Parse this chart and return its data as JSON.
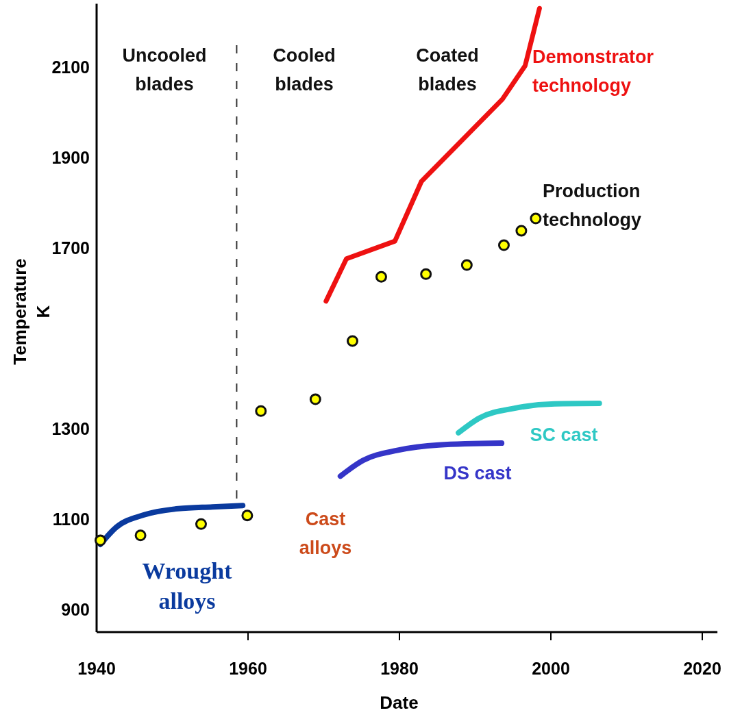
{
  "chart_data": {
    "type": "line",
    "xlabel": "Date",
    "ylabel": "Temperature K",
    "xlim": [
      1940,
      2022
    ],
    "xticks": [
      1940,
      1960,
      1980,
      2000,
      2020
    ],
    "ylim": [
      850,
      2240
    ],
    "yticks": [
      900,
      1100,
      1300,
      1700,
      1900,
      2100
    ],
    "grid": false,
    "series": [
      {
        "name": "Wrought alloys",
        "color": "#0a3a9e",
        "x": [
          1940.5,
          1942.6,
          1946.2,
          1950.8,
          1955.3,
          1959.3
        ],
        "values": [
          1044,
          1082,
          1109,
          1123,
          1127,
          1130
        ]
      },
      {
        "name": "DS cast",
        "color": "#3535c8",
        "x": [
          1972.2,
          1975.2,
          1979.7,
          1985.2,
          1993.5
        ],
        "values": [
          1195,
          1230,
          1252,
          1264,
          1268
        ]
      },
      {
        "name": "SC cast",
        "color": "#2ec8c4",
        "x": [
          1987.8,
          1990.6,
          1995.1,
          2000.5,
          2006.4
        ],
        "values": [
          1291,
          1324,
          1345,
          1355,
          1356
        ]
      },
      {
        "name": "Demonstrator technology",
        "color": "#ee1111",
        "x": [
          1970.3,
          1973.0,
          1979.4,
          1982.9,
          1993.6,
          1996.6,
          1998.5
        ],
        "values": [
          1582,
          1676,
          1715,
          1847,
          2029,
          2103,
          2230
        ]
      },
      {
        "name": "Production technology",
        "type": "scatter",
        "marker": "circle",
        "color": "#ffff00",
        "x": [
          1940.5,
          1945.8,
          1953.8,
          1959.9,
          1961.7,
          1968.9,
          1973.8,
          1977.6,
          1983.5,
          1988.9,
          1993.8,
          1996.1,
          1998.0
        ],
        "values": [
          1053,
          1064,
          1089,
          1108,
          1339,
          1365,
          1494,
          1636,
          1642,
          1662,
          1706,
          1738,
          1765
        ]
      }
    ],
    "ref_lines": [
      {
        "axis": "x",
        "value": 1958.5,
        "color": "#333333",
        "line_style": "dashed"
      }
    ],
    "annotations": [
      "Uncooled blades",
      "Cooled blades",
      "Coated blades",
      "Cast alloys"
    ]
  }
}
